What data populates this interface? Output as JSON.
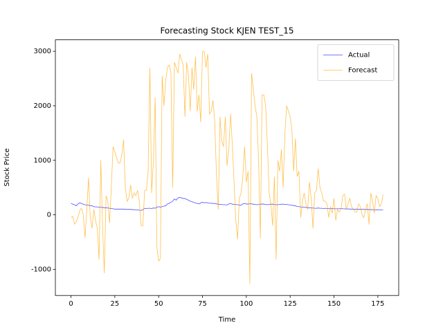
{
  "chart_data": {
    "type": "line",
    "title": "Forecasting Stock KJEN TEST_15",
    "xlabel": "Time",
    "ylabel": "Stock Price",
    "x": [
      0,
      1,
      2,
      3,
      4,
      5,
      6,
      7,
      8,
      9,
      10,
      11,
      12,
      13,
      14,
      15,
      16,
      17,
      18,
      19,
      20,
      21,
      22,
      23,
      24,
      25,
      26,
      27,
      28,
      29,
      30,
      31,
      32,
      33,
      34,
      35,
      36,
      37,
      38,
      39,
      40,
      41,
      42,
      43,
      44,
      45,
      46,
      47,
      48,
      49,
      50,
      51,
      52,
      53,
      54,
      55,
      56,
      57,
      58,
      59,
      60,
      61,
      62,
      63,
      64,
      65,
      66,
      67,
      68,
      69,
      70,
      71,
      72,
      73,
      74,
      75,
      76,
      77,
      78,
      79,
      80,
      81,
      82,
      83,
      84,
      85,
      86,
      87,
      88,
      89,
      90,
      91,
      92,
      93,
      94,
      95,
      96,
      97,
      98,
      99,
      100,
      101,
      102,
      103,
      104,
      105,
      106,
      107,
      108,
      109,
      110,
      111,
      112,
      113,
      114,
      115,
      116,
      117,
      118,
      119,
      120,
      121,
      122,
      123,
      124,
      125,
      126,
      127,
      128,
      129,
      130,
      131,
      132,
      133,
      134,
      135,
      136,
      137,
      138,
      139,
      140,
      141,
      142,
      143,
      144,
      145,
      146,
      147,
      148,
      149,
      150,
      151,
      152,
      153,
      154,
      155,
      156,
      157,
      158,
      159,
      160,
      161,
      162,
      163,
      164,
      165,
      166,
      167,
      168,
      169,
      170,
      171,
      172,
      173,
      174,
      175,
      176,
      177,
      178
    ],
    "series": [
      {
        "name": "Actual",
        "color": "#0000ff",
        "values": [
          210,
          195,
          185,
          165,
          200,
          220,
          205,
          195,
          185,
          180,
          175,
          170,
          165,
          150,
          145,
          145,
          140,
          140,
          135,
          130,
          130,
          125,
          120,
          115,
          110,
          105,
          105,
          105,
          105,
          105,
          105,
          100,
          100,
          100,
          100,
          95,
          95,
          90,
          90,
          85,
          80,
          95,
          120,
          115,
          120,
          120,
          115,
          125,
          120,
          140,
          150,
          140,
          150,
          160,
          165,
          200,
          210,
          230,
          250,
          290,
          270,
          310,
          320,
          310,
          300,
          300,
          280,
          270,
          250,
          240,
          230,
          215,
          210,
          200,
          220,
          230,
          220,
          225,
          220,
          210,
          215,
          205,
          210,
          200,
          195,
          190,
          190,
          185,
          185,
          180,
          200,
          210,
          195,
          190,
          190,
          185,
          180,
          175,
          200,
          205,
          200,
          195,
          205,
          200,
          195,
          190,
          185,
          190,
          190,
          200,
          195,
          190,
          185,
          190,
          195,
          195,
          190,
          185,
          185,
          190,
          195,
          195,
          190,
          190,
          185,
          180,
          175,
          170,
          165,
          155,
          150,
          145,
          140,
          140,
          135,
          130,
          130,
          125,
          125,
          120,
          120,
          125,
          120,
          120,
          115,
          120,
          115,
          115,
          110,
          115,
          110,
          110,
          110,
          110,
          115,
          110,
          110,
          105,
          110,
          105,
          105,
          105,
          100,
          105,
          100,
          100,
          100,
          100,
          95,
          100,
          95,
          95,
          95,
          90,
          90,
          95,
          90,
          90,
          90
        ]
      },
      {
        "name": "Forecast",
        "color": "#ffa500",
        "values": [
          -50,
          -30,
          -170,
          -130,
          -50,
          80,
          120,
          0,
          -420,
          100,
          680,
          -50,
          -250,
          100,
          -100,
          -250,
          -820,
          1000,
          -200,
          -1070,
          350,
          250,
          -150,
          500,
          1250,
          1150,
          1050,
          950,
          950,
          1100,
          1380,
          500,
          250,
          300,
          550,
          300,
          400,
          350,
          450,
          250,
          -200,
          -200,
          450,
          450,
          800,
          2700,
          400,
          1000,
          2150,
          -600,
          -850,
          -800,
          2550,
          2000,
          2450,
          2700,
          2750,
          2600,
          500,
          2800,
          2700,
          2600,
          2950,
          2850,
          2750,
          1800,
          2800,
          2550,
          1900,
          2700,
          2300,
          2900,
          1900,
          2200,
          1700,
          3000,
          3000,
          2700,
          2950,
          1850,
          1900,
          2100,
          1700,
          700,
          100,
          1800,
          1350,
          1250,
          1800,
          900,
          1200,
          1850,
          1300,
          600,
          -100,
          -450,
          300,
          400,
          700,
          1250,
          600,
          800,
          -1270,
          2600,
          2300,
          2000,
          1800,
          1000,
          -430,
          2200,
          2200,
          2000,
          1300,
          400,
          200,
          -200,
          700,
          -820,
          1000,
          800,
          1200,
          500,
          1500,
          2000,
          1900,
          1800,
          1550,
          800,
          1400,
          700,
          800,
          -50,
          250,
          400,
          200,
          100,
          600,
          300,
          -250,
          400,
          450,
          850,
          500,
          400,
          250,
          250,
          200,
          -50,
          150,
          30,
          300,
          -100,
          100,
          50,
          100,
          350,
          380,
          100,
          200,
          300,
          150,
          100,
          50,
          50,
          200,
          150,
          0,
          -50,
          100,
          200,
          -180,
          400,
          250,
          30,
          350,
          300,
          150,
          200,
          370
        ]
      }
    ],
    "xlim": [
      -8.9,
      186.9
    ],
    "ylim": [
      -1480,
      3210
    ],
    "xticks": [
      0,
      25,
      50,
      75,
      100,
      125,
      150,
      175
    ],
    "yticks": [
      -1000,
      0,
      1000,
      2000,
      3000
    ],
    "legend": "upper right"
  }
}
